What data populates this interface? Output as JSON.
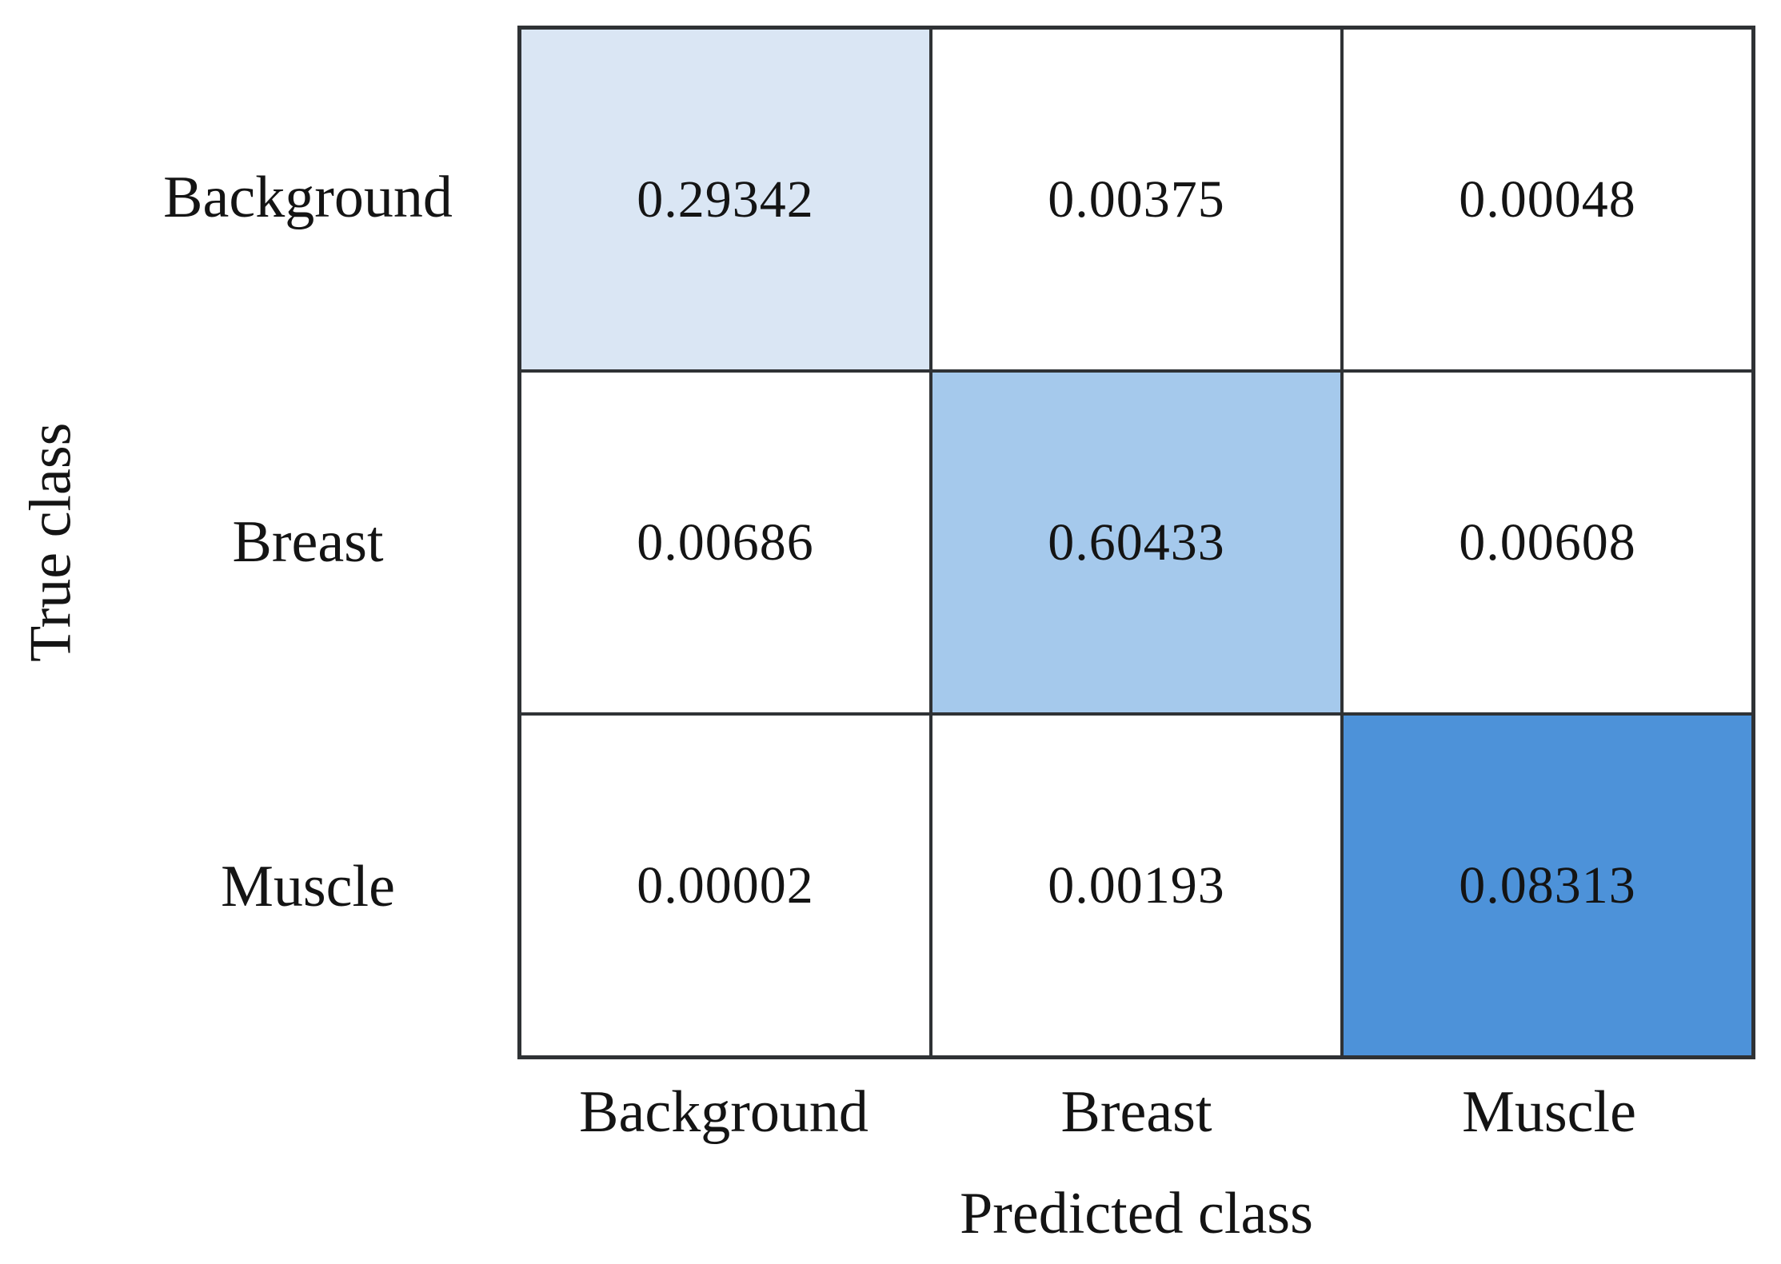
{
  "chart_data": {
    "type": "heatmap",
    "subtype": "confusion-matrix",
    "xlabel": "Predicted class",
    "ylabel": "True class",
    "x_categories": [
      "Background",
      "Breast",
      "Muscle"
    ],
    "y_categories": [
      "Background",
      "Breast",
      "Muscle"
    ],
    "values": [
      [
        0.29342,
        0.00375,
        0.00048
      ],
      [
        0.00686,
        0.60433,
        0.00608
      ],
      [
        2e-05,
        0.00193,
        0.08313
      ]
    ],
    "value_labels": [
      [
        "0.29342",
        "0.00375",
        "0.00048"
      ],
      [
        "0.00686",
        "0.60433",
        "0.00608"
      ],
      [
        "0.00002",
        "0.00193",
        "0.08313"
      ]
    ],
    "cell_colors": [
      [
        "#dae6f4",
        "#ffffff",
        "#ffffff"
      ],
      [
        "#ffffff",
        "#a5c9ec",
        "#ffffff"
      ],
      [
        "#ffffff",
        "#ffffff",
        "#4d92d9"
      ]
    ],
    "grid_border_color": "#2f3235",
    "text_color": "#141414",
    "legend": "none",
    "grid": "on"
  }
}
